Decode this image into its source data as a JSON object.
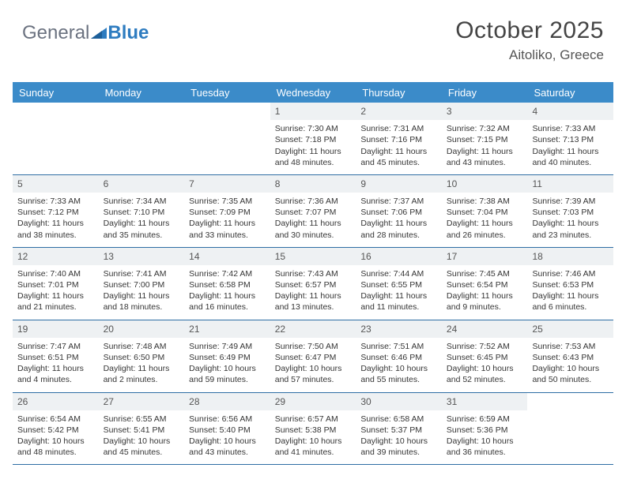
{
  "logo": {
    "text1": "General",
    "text2": "Blue"
  },
  "header": {
    "month": "October 2025",
    "location": "Aitoliko, Greece"
  },
  "colors": {
    "header_bg": "#3b8bc9",
    "border": "#2e6da4",
    "daynum_bg": "#eef1f3",
    "logo_blue": "#2e7cc0",
    "logo_gray": "#6b7280"
  },
  "dayNames": [
    "Sunday",
    "Monday",
    "Tuesday",
    "Wednesday",
    "Thursday",
    "Friday",
    "Saturday"
  ],
  "weeks": [
    [
      null,
      null,
      null,
      {
        "n": "1",
        "sr": "Sunrise: 7:30 AM",
        "ss": "Sunset: 7:18 PM",
        "d1": "Daylight: 11 hours",
        "d2": "and 48 minutes."
      },
      {
        "n": "2",
        "sr": "Sunrise: 7:31 AM",
        "ss": "Sunset: 7:16 PM",
        "d1": "Daylight: 11 hours",
        "d2": "and 45 minutes."
      },
      {
        "n": "3",
        "sr": "Sunrise: 7:32 AM",
        "ss": "Sunset: 7:15 PM",
        "d1": "Daylight: 11 hours",
        "d2": "and 43 minutes."
      },
      {
        "n": "4",
        "sr": "Sunrise: 7:33 AM",
        "ss": "Sunset: 7:13 PM",
        "d1": "Daylight: 11 hours",
        "d2": "and 40 minutes."
      }
    ],
    [
      {
        "n": "5",
        "sr": "Sunrise: 7:33 AM",
        "ss": "Sunset: 7:12 PM",
        "d1": "Daylight: 11 hours",
        "d2": "and 38 minutes."
      },
      {
        "n": "6",
        "sr": "Sunrise: 7:34 AM",
        "ss": "Sunset: 7:10 PM",
        "d1": "Daylight: 11 hours",
        "d2": "and 35 minutes."
      },
      {
        "n": "7",
        "sr": "Sunrise: 7:35 AM",
        "ss": "Sunset: 7:09 PM",
        "d1": "Daylight: 11 hours",
        "d2": "and 33 minutes."
      },
      {
        "n": "8",
        "sr": "Sunrise: 7:36 AM",
        "ss": "Sunset: 7:07 PM",
        "d1": "Daylight: 11 hours",
        "d2": "and 30 minutes."
      },
      {
        "n": "9",
        "sr": "Sunrise: 7:37 AM",
        "ss": "Sunset: 7:06 PM",
        "d1": "Daylight: 11 hours",
        "d2": "and 28 minutes."
      },
      {
        "n": "10",
        "sr": "Sunrise: 7:38 AM",
        "ss": "Sunset: 7:04 PM",
        "d1": "Daylight: 11 hours",
        "d2": "and 26 minutes."
      },
      {
        "n": "11",
        "sr": "Sunrise: 7:39 AM",
        "ss": "Sunset: 7:03 PM",
        "d1": "Daylight: 11 hours",
        "d2": "and 23 minutes."
      }
    ],
    [
      {
        "n": "12",
        "sr": "Sunrise: 7:40 AM",
        "ss": "Sunset: 7:01 PM",
        "d1": "Daylight: 11 hours",
        "d2": "and 21 minutes."
      },
      {
        "n": "13",
        "sr": "Sunrise: 7:41 AM",
        "ss": "Sunset: 7:00 PM",
        "d1": "Daylight: 11 hours",
        "d2": "and 18 minutes."
      },
      {
        "n": "14",
        "sr": "Sunrise: 7:42 AM",
        "ss": "Sunset: 6:58 PM",
        "d1": "Daylight: 11 hours",
        "d2": "and 16 minutes."
      },
      {
        "n": "15",
        "sr": "Sunrise: 7:43 AM",
        "ss": "Sunset: 6:57 PM",
        "d1": "Daylight: 11 hours",
        "d2": "and 13 minutes."
      },
      {
        "n": "16",
        "sr": "Sunrise: 7:44 AM",
        "ss": "Sunset: 6:55 PM",
        "d1": "Daylight: 11 hours",
        "d2": "and 11 minutes."
      },
      {
        "n": "17",
        "sr": "Sunrise: 7:45 AM",
        "ss": "Sunset: 6:54 PM",
        "d1": "Daylight: 11 hours",
        "d2": "and 9 minutes."
      },
      {
        "n": "18",
        "sr": "Sunrise: 7:46 AM",
        "ss": "Sunset: 6:53 PM",
        "d1": "Daylight: 11 hours",
        "d2": "and 6 minutes."
      }
    ],
    [
      {
        "n": "19",
        "sr": "Sunrise: 7:47 AM",
        "ss": "Sunset: 6:51 PM",
        "d1": "Daylight: 11 hours",
        "d2": "and 4 minutes."
      },
      {
        "n": "20",
        "sr": "Sunrise: 7:48 AM",
        "ss": "Sunset: 6:50 PM",
        "d1": "Daylight: 11 hours",
        "d2": "and 2 minutes."
      },
      {
        "n": "21",
        "sr": "Sunrise: 7:49 AM",
        "ss": "Sunset: 6:49 PM",
        "d1": "Daylight: 10 hours",
        "d2": "and 59 minutes."
      },
      {
        "n": "22",
        "sr": "Sunrise: 7:50 AM",
        "ss": "Sunset: 6:47 PM",
        "d1": "Daylight: 10 hours",
        "d2": "and 57 minutes."
      },
      {
        "n": "23",
        "sr": "Sunrise: 7:51 AM",
        "ss": "Sunset: 6:46 PM",
        "d1": "Daylight: 10 hours",
        "d2": "and 55 minutes."
      },
      {
        "n": "24",
        "sr": "Sunrise: 7:52 AM",
        "ss": "Sunset: 6:45 PM",
        "d1": "Daylight: 10 hours",
        "d2": "and 52 minutes."
      },
      {
        "n": "25",
        "sr": "Sunrise: 7:53 AM",
        "ss": "Sunset: 6:43 PM",
        "d1": "Daylight: 10 hours",
        "d2": "and 50 minutes."
      }
    ],
    [
      {
        "n": "26",
        "sr": "Sunrise: 6:54 AM",
        "ss": "Sunset: 5:42 PM",
        "d1": "Daylight: 10 hours",
        "d2": "and 48 minutes."
      },
      {
        "n": "27",
        "sr": "Sunrise: 6:55 AM",
        "ss": "Sunset: 5:41 PM",
        "d1": "Daylight: 10 hours",
        "d2": "and 45 minutes."
      },
      {
        "n": "28",
        "sr": "Sunrise: 6:56 AM",
        "ss": "Sunset: 5:40 PM",
        "d1": "Daylight: 10 hours",
        "d2": "and 43 minutes."
      },
      {
        "n": "29",
        "sr": "Sunrise: 6:57 AM",
        "ss": "Sunset: 5:38 PM",
        "d1": "Daylight: 10 hours",
        "d2": "and 41 minutes."
      },
      {
        "n": "30",
        "sr": "Sunrise: 6:58 AM",
        "ss": "Sunset: 5:37 PM",
        "d1": "Daylight: 10 hours",
        "d2": "and 39 minutes."
      },
      {
        "n": "31",
        "sr": "Sunrise: 6:59 AM",
        "ss": "Sunset: 5:36 PM",
        "d1": "Daylight: 10 hours",
        "d2": "and 36 minutes."
      },
      null
    ]
  ]
}
